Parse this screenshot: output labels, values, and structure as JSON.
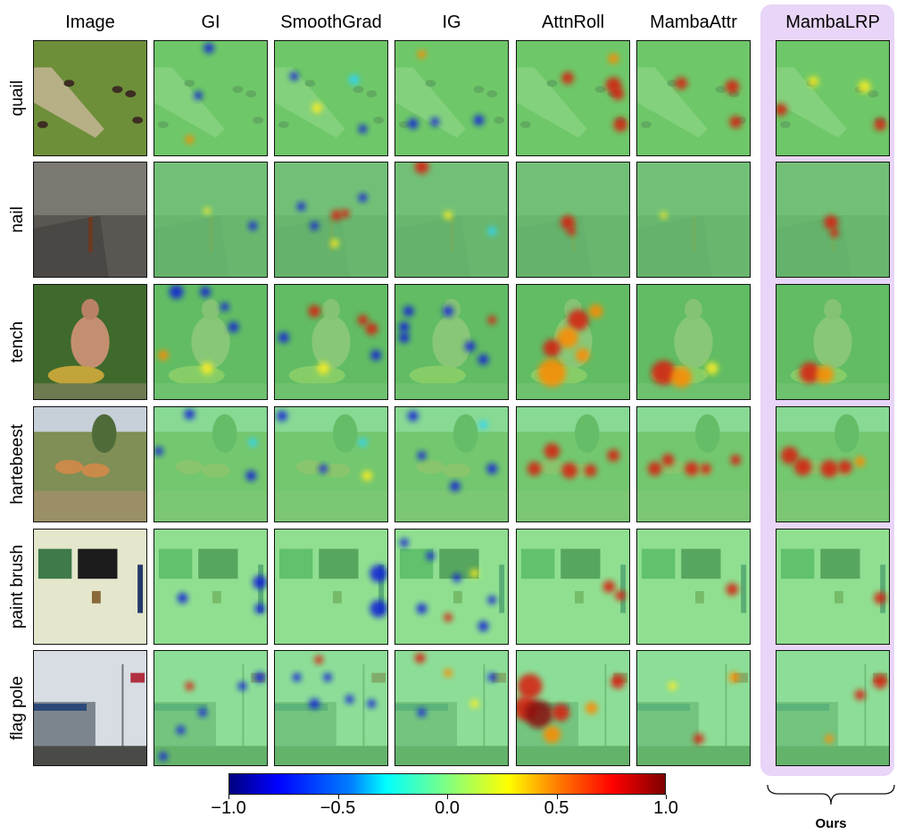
{
  "figure": {
    "column_headers": [
      "Image",
      "GI",
      "SmoothGrad",
      "IG",
      "AttnRoll",
      "MambaAttr",
      "MambaLRP"
    ],
    "row_labels": [
      "quail",
      "nail",
      "tench",
      "hartebeest",
      "paint brush",
      "flag pole"
    ],
    "colorbar": {
      "ticks": [
        "−1.0",
        "−0.5",
        "0.0",
        "0.5",
        "1.0"
      ],
      "colors": [
        "#00007f",
        "#0000ff",
        "#00ffff",
        "#80ff80",
        "#ffff00",
        "#ff0000",
        "#7f0000"
      ]
    },
    "ours_label": "Ours",
    "highlight_color": "#e8d5f7"
  }
}
